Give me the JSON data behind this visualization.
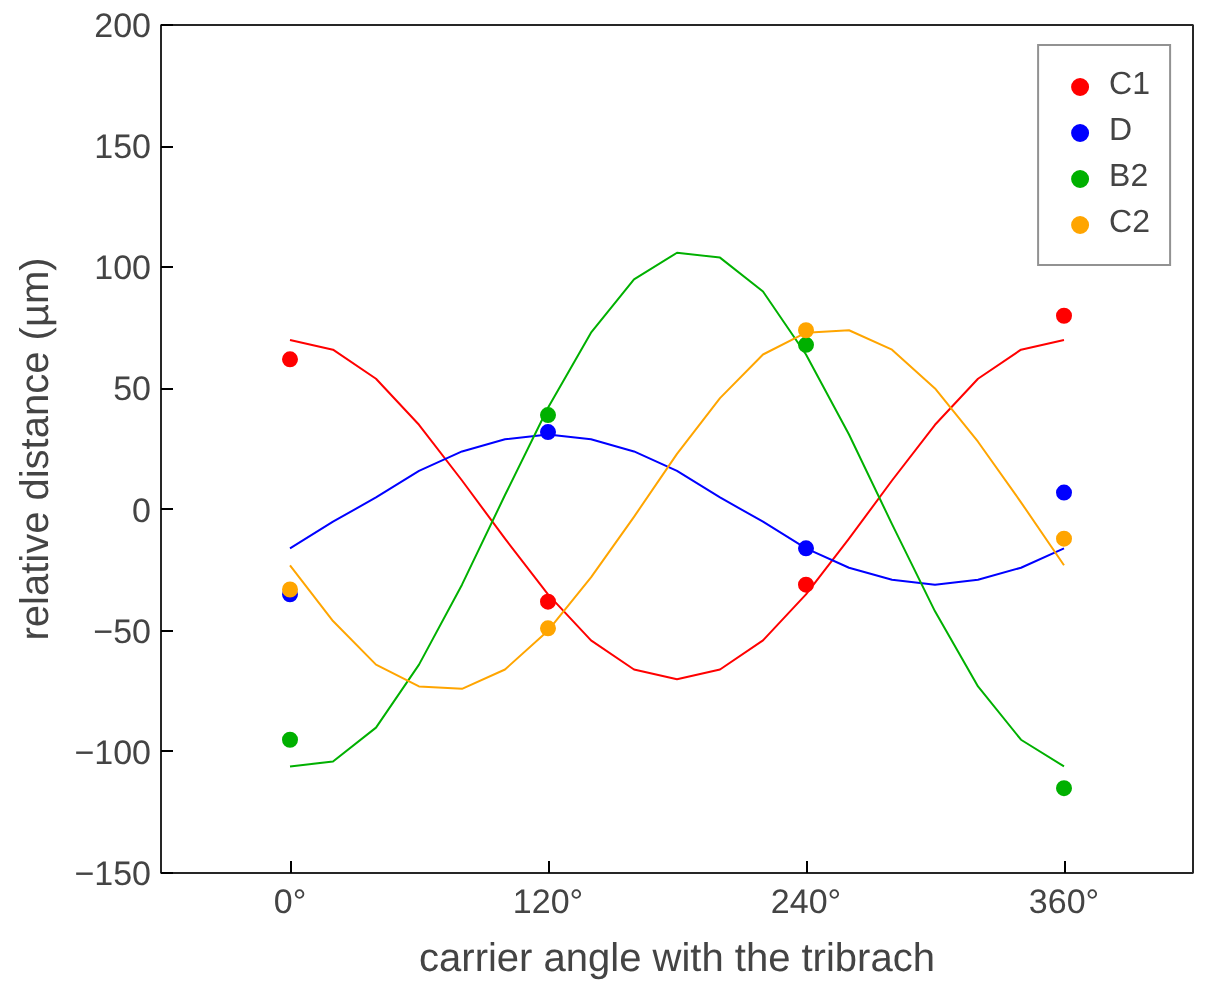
{
  "chart_data": {
    "type": "scatter",
    "xlabel": "carrier angle with the tribrach",
    "ylabel": "relative distance (µm)",
    "xlim": [
      -60,
      420
    ],
    "ylim": [
      -150,
      200
    ],
    "xticks": [
      {
        "value": 0,
        "label": "0°"
      },
      {
        "value": 120,
        "label": "120°"
      },
      {
        "value": 240,
        "label": "240°"
      },
      {
        "value": 360,
        "label": "360°"
      }
    ],
    "yticks": [
      -150,
      -100,
      -50,
      0,
      50,
      100,
      150,
      200
    ],
    "grid": false,
    "legend": "top right",
    "marker": "circle",
    "x": [
      0,
      120,
      240,
      360
    ],
    "series": [
      {
        "name": "C1",
        "color": "#ff0000",
        "values": [
          62,
          -38,
          -31,
          80
        ]
      },
      {
        "name": "D",
        "color": "#0000ff",
        "values": [
          -35,
          32,
          -16,
          7
        ]
      },
      {
        "name": "B2",
        "color": "#00b000",
        "values": [
          -95,
          39,
          68,
          -115
        ]
      },
      {
        "name": "C2",
        "color": "#ffa500",
        "values": [
          -33,
          -49,
          74,
          -12
        ]
      },
      {
        "type": "line",
        "marker": "none",
        "color": "#ff0000",
        "x": [
          0,
          20,
          40,
          60,
          80,
          100,
          120,
          140,
          160,
          180,
          200,
          220,
          240,
          260,
          280,
          300,
          320,
          340,
          360
        ],
        "values": [
          70,
          66,
          54,
          35,
          12,
          -12,
          -35,
          -54,
          -66,
          -70,
          -66,
          -54,
          -35,
          -12,
          12,
          35,
          54,
          66,
          70
        ]
      },
      {
        "type": "line",
        "marker": "none",
        "color": "#0000ff",
        "x": [
          0,
          20,
          40,
          60,
          80,
          100,
          120,
          140,
          160,
          180,
          200,
          220,
          240,
          260,
          280,
          300,
          320,
          340,
          360
        ],
        "values": [
          -16,
          -5,
          5,
          16,
          24,
          29,
          31,
          29,
          24,
          16,
          5,
          -5,
          -16,
          -24,
          -29,
          -31,
          -29,
          -24,
          -16
        ]
      },
      {
        "type": "line",
        "marker": "none",
        "color": "#00b000",
        "x": [
          0,
          20,
          40,
          60,
          80,
          100,
          120,
          140,
          160,
          180,
          200,
          220,
          240,
          260,
          280,
          300,
          320,
          340,
          360
        ],
        "values": [
          -106,
          -104,
          -90,
          -64,
          -31,
          6,
          42,
          73,
          95,
          106,
          104,
          90,
          64,
          31,
          -6,
          -42,
          -73,
          -95,
          -106
        ]
      },
      {
        "type": "line",
        "marker": "none",
        "color": "#ffa500",
        "x": [
          0,
          20,
          40,
          60,
          80,
          100,
          120,
          140,
          160,
          180,
          200,
          220,
          240,
          260,
          280,
          300,
          320,
          340,
          360
        ],
        "values": [
          -23,
          -46,
          -64,
          -73,
          -74,
          -66,
          -50,
          -28,
          -3,
          23,
          46,
          64,
          73,
          74,
          66,
          50,
          28,
          3,
          -23
        ]
      }
    ]
  }
}
